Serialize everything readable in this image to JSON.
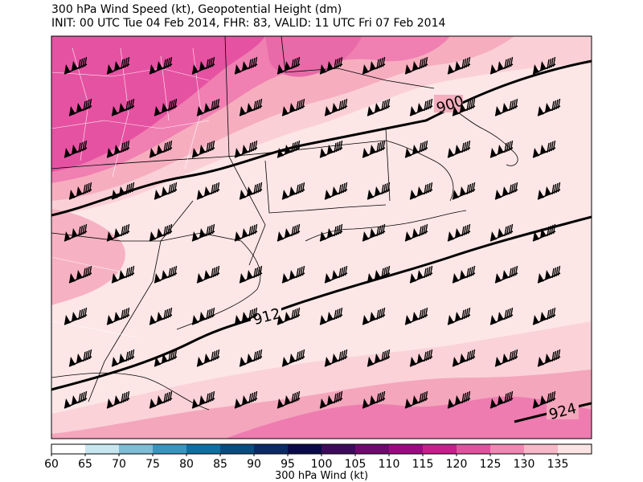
{
  "header": {
    "title": "300 hPa Wind Speed (kt), Geopotential Height (dm)",
    "subtitle": "INIT: 00 UTC Tue 04 Feb 2014, FHR: 83, VALID: 11 UTC Fri 07 Feb 2014"
  },
  "contour_labels": [
    "900",
    "912",
    "924"
  ],
  "colorbar": {
    "title": "300 hPa Wind (kt)",
    "ticks": [
      "60",
      "65",
      "70",
      "75",
      "80",
      "85",
      "90",
      "95",
      "100",
      "105",
      "110",
      "115",
      "120",
      "125",
      "130",
      "135"
    ],
    "colors": [
      "#ffffff",
      "#c7e6f0",
      "#7fbcd6",
      "#3a95be",
      "#0f6f9f",
      "#0a4c7f",
      "#0a2a66",
      "#0a0a4a",
      "#3d0a5c",
      "#6e0a6e",
      "#9c0a82",
      "#c81e8c",
      "#e0529e",
      "#f088b4",
      "#f8b8c8",
      "#fde4e4"
    ]
  },
  "map": {
    "fill_colors": {
      "level_120": "#f4a0b6",
      "level_125": "#f8c0cc",
      "level_130": "#fde2e2",
      "level_115": "#ea64a6",
      "level_110": "#e04a9c"
    },
    "boundary_color_state": "#000000",
    "boundary_color_county": "#ffffff",
    "barb_color": "#000000"
  }
}
